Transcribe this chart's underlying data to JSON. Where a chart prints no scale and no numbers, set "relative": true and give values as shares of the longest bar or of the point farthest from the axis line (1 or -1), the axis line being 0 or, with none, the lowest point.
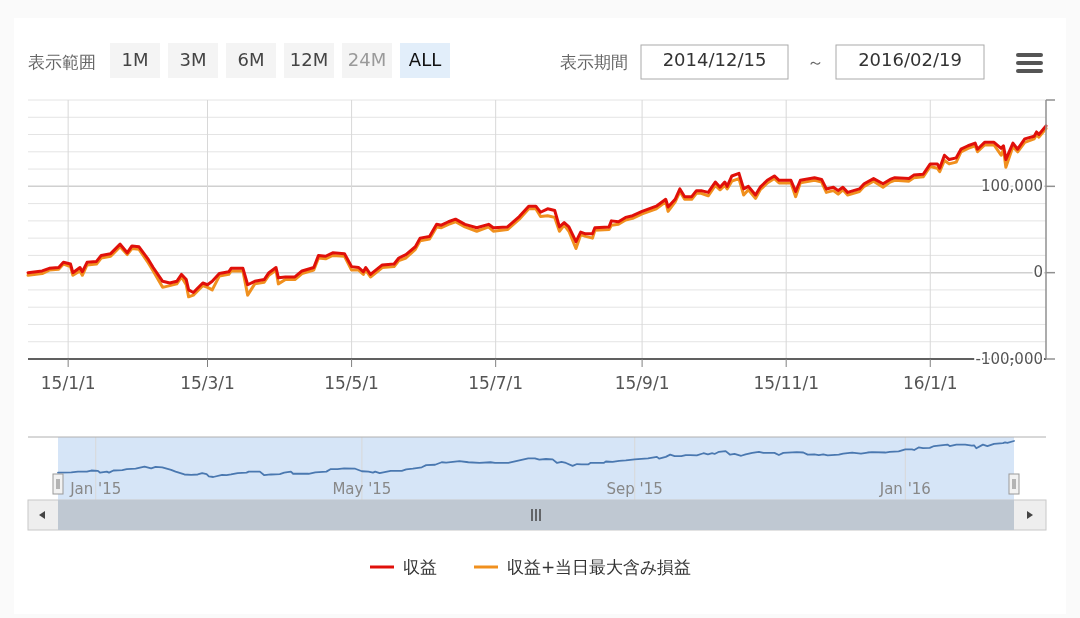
{
  "chart_data": [
    {
      "type": "line",
      "annotations": [
        "表示範囲",
        "1M",
        "3M",
        "6M",
        "12M",
        "24M",
        "ALL",
        "表示期間",
        "2014/12/15",
        "～",
        "2016/02/19"
      ],
      "x": [
        "2014-12-15",
        "2014-12-21",
        "2014-12-24",
        "2014-12-28",
        "2014-12-30",
        "2015-01-02",
        "2015-01-03",
        "2015-01-06",
        "2015-01-07",
        "2015-01-09",
        "2015-01-13",
        "2015-01-15",
        "2015-01-19",
        "2015-01-23",
        "2015-01-26",
        "2015-01-28",
        "2015-01-31",
        "2015-02-04",
        "2015-02-06",
        "2015-02-10",
        "2015-02-13",
        "2015-02-16",
        "2015-02-18",
        "2015-02-20",
        "2015-02-21",
        "2015-02-23",
        "2015-02-27",
        "2015-03-01",
        "2015-03-03",
        "2015-03-06",
        "2015-03-10",
        "2015-03-11",
        "2015-03-16",
        "2015-03-18",
        "2015-03-21",
        "2015-03-25",
        "2015-03-27",
        "2015-03-30",
        "2015-03-31",
        "2015-04-03",
        "2015-04-07",
        "2015-04-10",
        "2015-04-15",
        "2015-04-17",
        "2015-04-20",
        "2015-04-23",
        "2015-04-28",
        "2015-05-01",
        "2015-05-04",
        "2015-05-06",
        "2015-05-07",
        "2015-05-09",
        "2015-05-14",
        "2015-05-19",
        "2015-05-21",
        "2015-05-24",
        "2015-05-28",
        "2015-05-30",
        "2015-06-03",
        "2015-06-06",
        "2015-06-08",
        "2015-06-11",
        "2015-06-14",
        "2015-06-18",
        "2015-06-23",
        "2015-06-28",
        "2015-06-30",
        "2015-07-06",
        "2015-07-11",
        "2015-07-15",
        "2015-07-18",
        "2015-07-20",
        "2015-07-23",
        "2015-07-26",
        "2015-07-28",
        "2015-07-30",
        "2015-08-01",
        "2015-08-04",
        "2015-08-06",
        "2015-08-08",
        "2015-08-11",
        "2015-08-12",
        "2015-08-18",
        "2015-08-19",
        "2015-08-22",
        "2015-08-25",
        "2015-08-28",
        "2015-09-01",
        "2015-09-07",
        "2015-09-11",
        "2015-09-12",
        "2015-09-15",
        "2015-09-17",
        "2015-09-19",
        "2015-09-22",
        "2015-09-24",
        "2015-09-26",
        "2015-09-29",
        "2015-10-02",
        "2015-10-04",
        "2015-10-06",
        "2015-10-07",
        "2015-10-09",
        "2015-10-12",
        "2015-10-14",
        "2015-10-16",
        "2015-10-19",
        "2015-10-21",
        "2015-10-24",
        "2015-10-27",
        "2015-10-29",
        "2015-11-03",
        "2015-11-05",
        "2015-11-07",
        "2015-11-13",
        "2015-11-16",
        "2015-11-18",
        "2015-11-21",
        "2015-11-23",
        "2015-11-25",
        "2015-11-27",
        "2015-12-02",
        "2015-12-04",
        "2015-12-08",
        "2015-12-12",
        "2015-12-15",
        "2015-12-17",
        "2015-12-23",
        "2015-12-25",
        "2015-12-29",
        "2016-01-01",
        "2016-01-04",
        "2016-01-05",
        "2016-01-07",
        "2016-01-09",
        "2016-01-12",
        "2016-01-14",
        "2016-01-17",
        "2016-01-20",
        "2016-01-21",
        "2016-01-24",
        "2016-01-28",
        "2016-01-31",
        "2016-02-01",
        "2016-02-02",
        "2016-02-05",
        "2016-02-07",
        "2016-02-10",
        "2016-02-14",
        "2016-02-15",
        "2016-02-16",
        "2016-02-19"
      ],
      "series": [
        {
          "name": "収益+当日最大含み損益",
          "color": "#f0901e",
          "values": [
            -3000,
            -1000,
            3000,
            4000,
            10000,
            7000,
            -3000,
            2000,
            -3000,
            9000,
            10000,
            17000,
            19000,
            30000,
            21000,
            28000,
            27000,
            11000,
            2000,
            -17000,
            -15000,
            -13000,
            -5000,
            -14000,
            -28000,
            -26000,
            -15000,
            -17000,
            -20000,
            -4000,
            -2000,
            2000,
            2000,
            -26000,
            -13000,
            -11000,
            -3000,
            3000,
            -13000,
            -8000,
            -8000,
            -1000,
            3000,
            17000,
            16000,
            20000,
            19000,
            3000,
            3000,
            -2000,
            3000,
            -5000,
            6000,
            7000,
            14000,
            17000,
            27000,
            37000,
            39000,
            53000,
            52000,
            56000,
            59000,
            53000,
            48000,
            53000,
            48000,
            50000,
            62000,
            74000,
            74000,
            65000,
            66000,
            64000,
            48000,
            55000,
            48000,
            28000,
            44000,
            42000,
            40000,
            49000,
            50000,
            55000,
            56000,
            61000,
            63000,
            68000,
            74000,
            82000,
            71000,
            82000,
            94000,
            85000,
            85000,
            92000,
            92000,
            89000,
            101000,
            96000,
            101000,
            97000,
            106000,
            109000,
            90000,
            96000,
            86000,
            96000,
            104000,
            109000,
            104000,
            104000,
            88000,
            104000,
            107000,
            105000,
            93000,
            95000,
            91000,
            96000,
            90000,
            94000,
            100000,
            106000,
            99000,
            105000,
            107000,
            106000,
            110000,
            111000,
            123000,
            121000,
            117000,
            130000,
            126000,
            128000,
            140000,
            144000,
            147000,
            140000,
            148000,
            148000,
            136000,
            143000,
            122000,
            146000,
            140000,
            151000,
            155000,
            160000,
            157000,
            167000
          ]
        },
        {
          "name": "収益",
          "color": "#e0100a",
          "values": [
            0,
            2000,
            5000,
            6000,
            12000,
            10000,
            0,
            6000,
            1000,
            12000,
            13000,
            20000,
            22000,
            33000,
            23000,
            31000,
            30000,
            15000,
            6000,
            -10000,
            -12000,
            -10000,
            -2000,
            -8000,
            -20000,
            -23000,
            -12000,
            -14000,
            -10000,
            -1000,
            1000,
            5000,
            5000,
            -14000,
            -10000,
            -8000,
            0,
            6000,
            -6000,
            -5000,
            -5000,
            2000,
            6000,
            20000,
            19000,
            23000,
            22000,
            7000,
            6000,
            1000,
            6000,
            -2000,
            9000,
            10000,
            17000,
            21000,
            30000,
            40000,
            42000,
            56000,
            55000,
            59000,
            62000,
            56000,
            52000,
            56000,
            52000,
            53000,
            65000,
            77000,
            77000,
            70000,
            74000,
            72000,
            53000,
            58000,
            53000,
            36000,
            47000,
            45000,
            45000,
            52000,
            53000,
            60000,
            59000,
            64000,
            66000,
            71000,
            77000,
            85000,
            76000,
            85000,
            97000,
            88000,
            88000,
            95000,
            95000,
            93000,
            105000,
            99000,
            105000,
            100000,
            112000,
            115000,
            97000,
            100000,
            90000,
            99000,
            107000,
            112000,
            107000,
            107000,
            94000,
            107000,
            110000,
            108000,
            97000,
            99000,
            95000,
            99000,
            93000,
            97000,
            103000,
            109000,
            103000,
            108000,
            110000,
            109000,
            113000,
            114000,
            126000,
            126000,
            121000,
            136000,
            131000,
            133000,
            143000,
            147000,
            150000,
            143000,
            151000,
            151000,
            144000,
            147000,
            131000,
            150000,
            143000,
            155000,
            158000,
            163000,
            160000,
            170000
          ]
        }
      ],
      "xlim": [
        "2014-12-15",
        "2016-02-19"
      ],
      "xticks": [
        {
          "value": "2015-01-01",
          "label": "15/1/1"
        },
        {
          "value": "2015-03-01",
          "label": "15/3/1"
        },
        {
          "value": "2015-05-01",
          "label": "15/5/1"
        },
        {
          "value": "2015-07-01",
          "label": "15/7/1"
        },
        {
          "value": "2015-09-01",
          "label": "15/9/1"
        },
        {
          "value": "2015-11-01",
          "label": "15/11/1"
        },
        {
          "value": "2016-01-01",
          "label": "16/1/1"
        }
      ],
      "ylim": [
        -100000,
        200000
      ],
      "yticks": [
        {
          "value": -100000,
          "label": "-100,000"
        },
        {
          "value": -80000,
          "label": null
        },
        {
          "value": -60000,
          "label": null
        },
        {
          "value": -40000,
          "label": null
        },
        {
          "value": -20000,
          "label": null
        },
        {
          "value": 0,
          "label": "0"
        },
        {
          "value": 20000,
          "label": null
        },
        {
          "value": 40000,
          "label": null
        },
        {
          "value": 60000,
          "label": null
        },
        {
          "value": 80000,
          "label": null
        },
        {
          "value": 100000,
          "label": "100,000"
        },
        {
          "value": 120000,
          "label": null
        },
        {
          "value": 140000,
          "label": null
        },
        {
          "value": 160000,
          "label": null
        },
        {
          "value": 180000,
          "label": null
        },
        {
          "value": 200000,
          "label": null
        }
      ],
      "grid": true,
      "legend": "bottom"
    },
    {
      "type": "line",
      "x": [
        "2014-12-15",
        "2014-12-21",
        "2014-12-24",
        "2014-12-28",
        "2014-12-30",
        "2015-01-02",
        "2015-01-03",
        "2015-01-06",
        "2015-01-07",
        "2015-01-09",
        "2015-01-13",
        "2015-01-15",
        "2015-01-19",
        "2015-01-23",
        "2015-01-26",
        "2015-01-28",
        "2015-01-31",
        "2015-02-04",
        "2015-02-06",
        "2015-02-10",
        "2015-02-13",
        "2015-02-16",
        "2015-02-18",
        "2015-02-20",
        "2015-02-21",
        "2015-02-23",
        "2015-02-27",
        "2015-03-01",
        "2015-03-03",
        "2015-03-06",
        "2015-03-10",
        "2015-03-11",
        "2015-03-16",
        "2015-03-18",
        "2015-03-21",
        "2015-03-25",
        "2015-03-27",
        "2015-03-30",
        "2015-03-31",
        "2015-04-03",
        "2015-04-07",
        "2015-04-10",
        "2015-04-15",
        "2015-04-17",
        "2015-04-20",
        "2015-04-23",
        "2015-04-28",
        "2015-05-01",
        "2015-05-04",
        "2015-05-06",
        "2015-05-07",
        "2015-05-09",
        "2015-05-14",
        "2015-05-19",
        "2015-05-21",
        "2015-05-24",
        "2015-05-28",
        "2015-05-30",
        "2015-06-03",
        "2015-06-06",
        "2015-06-08",
        "2015-06-11",
        "2015-06-14",
        "2015-06-18",
        "2015-06-23",
        "2015-06-28",
        "2015-06-30",
        "2015-07-06",
        "2015-07-11",
        "2015-07-15",
        "2015-07-18",
        "2015-07-20",
        "2015-07-23",
        "2015-07-26",
        "2015-07-28",
        "2015-07-30",
        "2015-08-01",
        "2015-08-04",
        "2015-08-06",
        "2015-08-08",
        "2015-08-11",
        "2015-08-12",
        "2015-08-18",
        "2015-08-19",
        "2015-08-22",
        "2015-08-25",
        "2015-08-28",
        "2015-09-01",
        "2015-09-07",
        "2015-09-11",
        "2015-09-12",
        "2015-09-15",
        "2015-09-17",
        "2015-09-19",
        "2015-09-22",
        "2015-09-24",
        "2015-09-26",
        "2015-09-29",
        "2015-10-02",
        "2015-10-04",
        "2015-10-06",
        "2015-10-07",
        "2015-10-09",
        "2015-10-12",
        "2015-10-14",
        "2015-10-16",
        "2015-10-19",
        "2015-10-21",
        "2015-10-24",
        "2015-10-27",
        "2015-10-29",
        "2015-11-03",
        "2015-11-05",
        "2015-11-07",
        "2015-11-13",
        "2015-11-16",
        "2015-11-18",
        "2015-11-21",
        "2015-11-23",
        "2015-11-25",
        "2015-11-27",
        "2015-12-02",
        "2015-12-04",
        "2015-12-08",
        "2015-12-12",
        "2015-12-15",
        "2015-12-17",
        "2015-12-23",
        "2015-12-25",
        "2015-12-29",
        "2016-01-01",
        "2016-01-04",
        "2016-01-05",
        "2016-01-07",
        "2016-01-09",
        "2016-01-12",
        "2016-01-14",
        "2016-01-17",
        "2016-01-20",
        "2016-01-21",
        "2016-01-24",
        "2016-01-28",
        "2016-01-31",
        "2016-02-01",
        "2016-02-02",
        "2016-02-05",
        "2016-02-07",
        "2016-02-10",
        "2016-02-14",
        "2016-02-15",
        "2016-02-16",
        "2016-02-19"
      ],
      "series": [
        {
          "color": "#4a78b0",
          "values": [
            0.12,
            0.13,
            0.15,
            0.15,
            0.18,
            0.17,
            0.12,
            0.15,
            0.12,
            0.18,
            0.19,
            0.22,
            0.23,
            0.29,
            0.24,
            0.28,
            0.27,
            0.2,
            0.15,
            0.07,
            0.06,
            0.07,
            0.11,
            0.08,
            0.02,
            0,
            0.06,
            0.05,
            0.07,
            0.11,
            0.12,
            0.15,
            0.15,
            0.05,
            0.07,
            0.08,
            0.12,
            0.15,
            0.09,
            0.09,
            0.09,
            0.13,
            0.15,
            0.22,
            0.22,
            0.24,
            0.23,
            0.16,
            0.15,
            0.12,
            0.15,
            0.11,
            0.17,
            0.17,
            0.21,
            0.23,
            0.27,
            0.33,
            0.34,
            0.41,
            0.4,
            0.42,
            0.44,
            0.41,
            0.39,
            0.41,
            0.39,
            0.39,
            0.46,
            0.52,
            0.52,
            0.48,
            0.5,
            0.49,
            0.39,
            0.42,
            0.39,
            0.31,
            0.36,
            0.35,
            0.35,
            0.39,
            0.39,
            0.43,
            0.42,
            0.45,
            0.46,
            0.49,
            0.52,
            0.56,
            0.51,
            0.56,
            0.62,
            0.58,
            0.58,
            0.61,
            0.61,
            0.6,
            0.66,
            0.63,
            0.66,
            0.64,
            0.7,
            0.72,
            0.62,
            0.64,
            0.59,
            0.63,
            0.67,
            0.7,
            0.67,
            0.67,
            0.61,
            0.67,
            0.69,
            0.68,
            0.62,
            0.63,
            0.61,
            0.63,
            0.6,
            0.62,
            0.65,
            0.68,
            0.65,
            0.68,
            0.69,
            0.68,
            0.7,
            0.71,
            0.77,
            0.77,
            0.75,
            0.82,
            0.8,
            0.81,
            0.86,
            0.88,
            0.9,
            0.86,
            0.9,
            0.9,
            0.87,
            0.88,
            0.8,
            0.9,
            0.86,
            0.92,
            0.94,
            0.96,
            0.95,
            1
          ]
        }
      ],
      "xlim": [
        "2014-12-15",
        "2016-02-19"
      ],
      "xticks": [
        {
          "value": "2015-01-01",
          "label": "Jan '15"
        },
        {
          "value": "2015-05-01",
          "label": "May '15"
        },
        {
          "value": "2015-09-01",
          "label": "Sep '15"
        },
        {
          "value": "2016-01-01",
          "label": "Jan '16"
        }
      ],
      "relative": true,
      "tick_labels": "x",
      "grid": "x"
    }
  ]
}
